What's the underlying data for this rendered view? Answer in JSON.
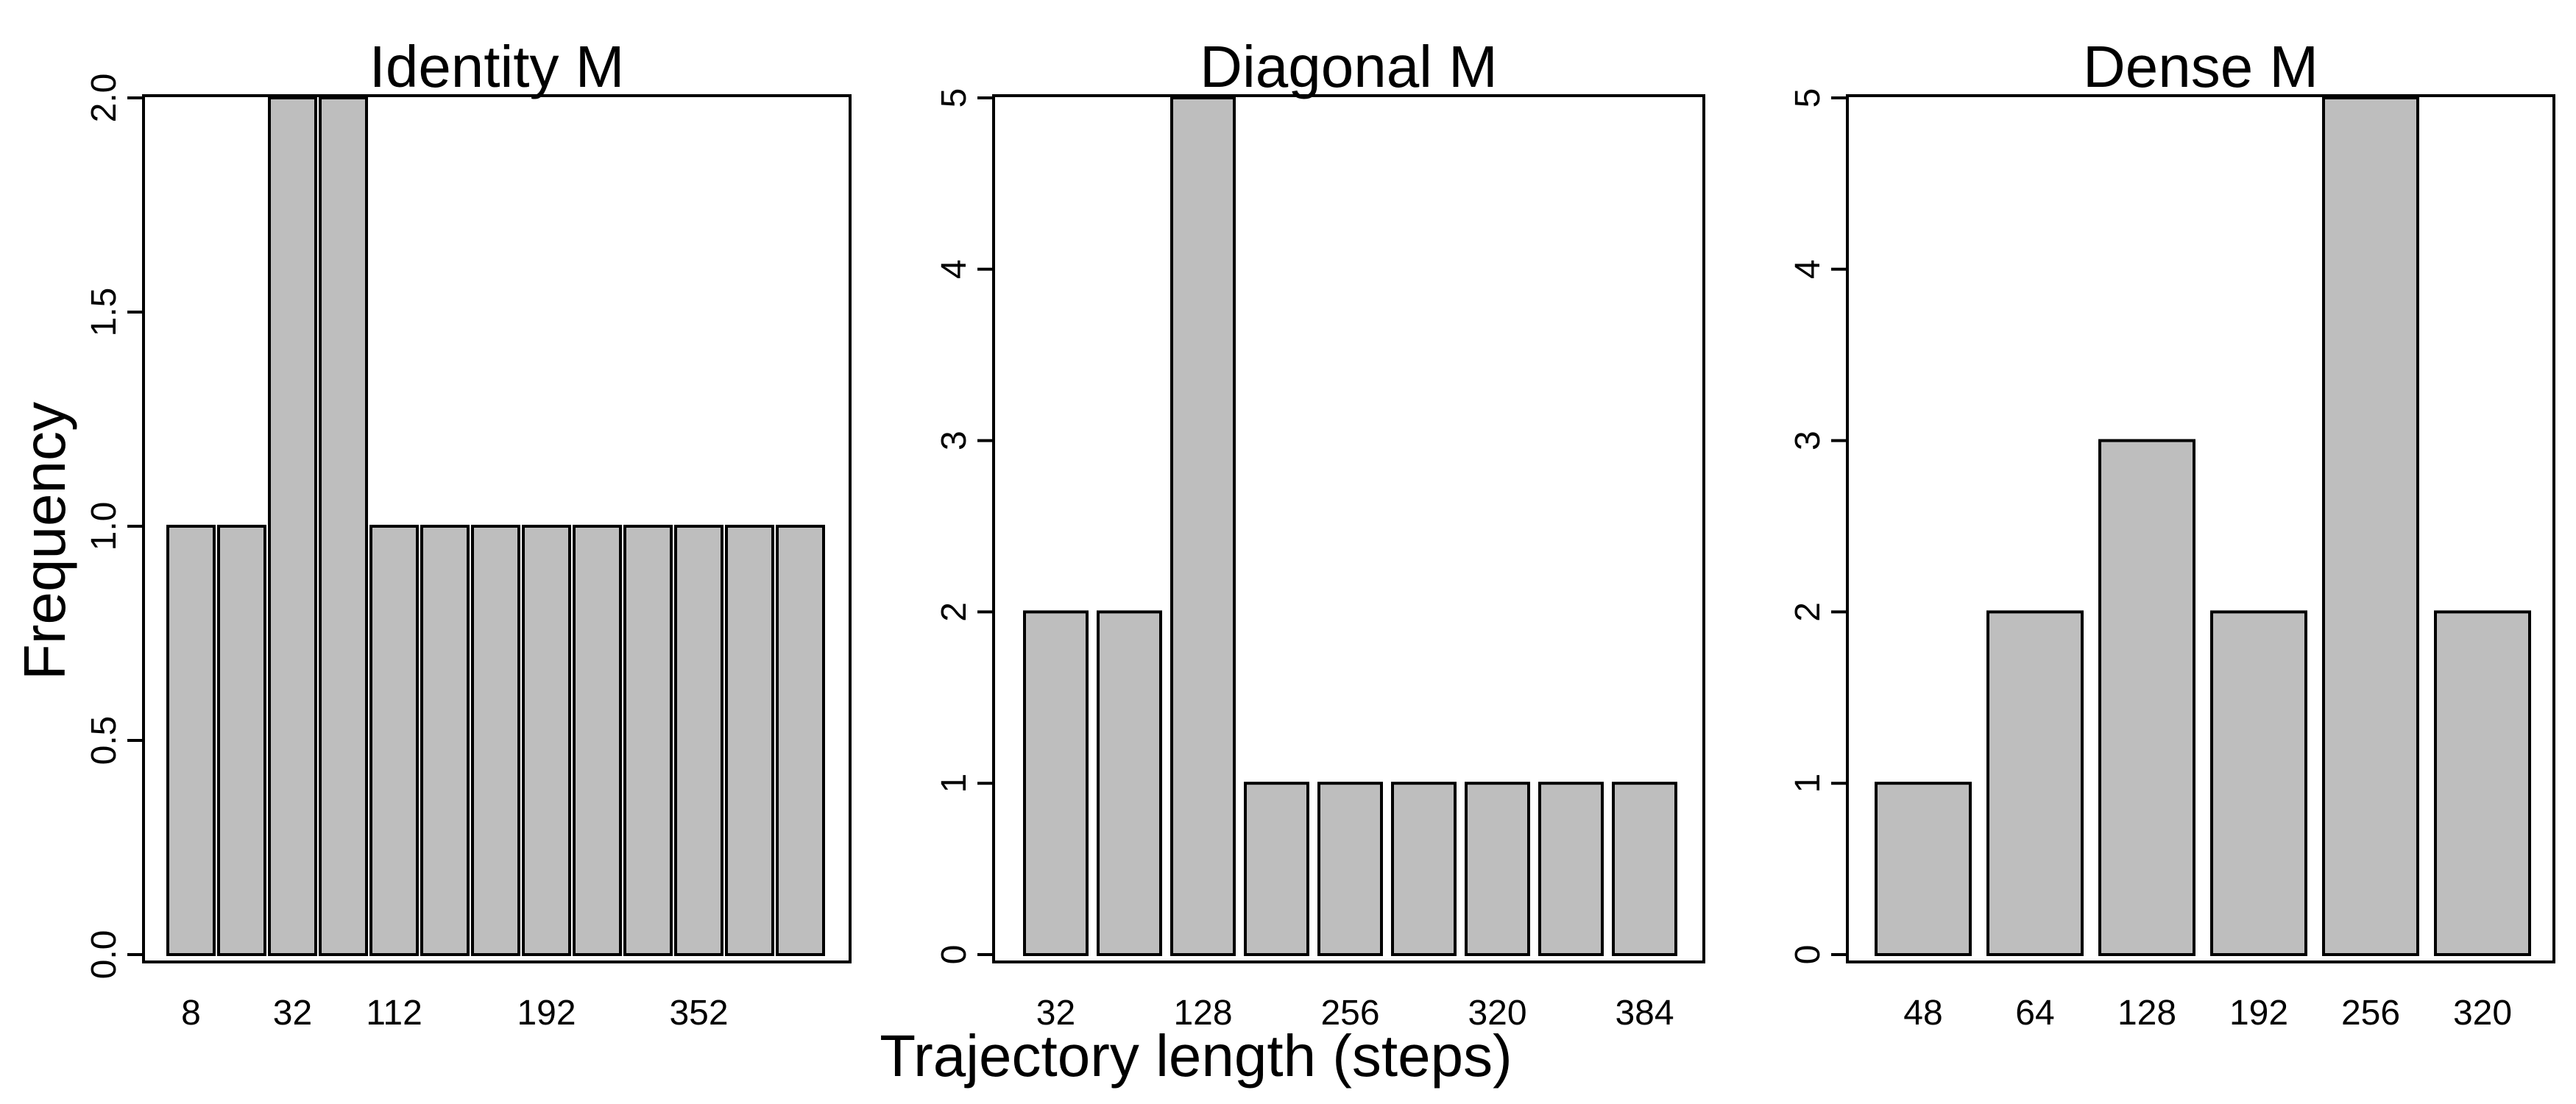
{
  "figure": {
    "ylabel": "Frequency",
    "xlabel": "Trajectory length (steps)"
  },
  "colors": {
    "bar_fill": "#bebebe",
    "bar_stroke": "#000000",
    "background": "#ffffff"
  },
  "chart_data": [
    {
      "type": "bar",
      "title": "Identity M",
      "xlabel": "",
      "ylabel": "",
      "ylim": [
        0,
        2
      ],
      "yticks": [
        0.0,
        0.5,
        1.0,
        1.5,
        2.0
      ],
      "ytick_labels": [
        "0.0",
        "0.5",
        "1.0",
        "1.5",
        "2.0"
      ],
      "values": [
        1,
        1,
        2,
        2,
        1,
        1,
        1,
        1,
        1,
        1,
        1,
        1,
        1
      ],
      "x_tick_labels": [
        {
          "bar": 0,
          "label": "8"
        },
        {
          "bar": 2,
          "label": "32"
        },
        {
          "bar": 4,
          "label": "112"
        },
        {
          "bar": 7,
          "label": "192"
        },
        {
          "bar": 10,
          "label": "352"
        }
      ],
      "grid": false
    },
    {
      "type": "bar",
      "title": "Diagonal M",
      "xlabel": "",
      "ylabel": "",
      "ylim": [
        0,
        5
      ],
      "yticks": [
        0,
        1,
        2,
        3,
        4,
        5
      ],
      "ytick_labels": [
        "0",
        "1",
        "2",
        "3",
        "4",
        "5"
      ],
      "values": [
        2,
        2,
        5,
        1,
        1,
        1,
        1,
        1,
        1
      ],
      "x_tick_labels": [
        {
          "bar": 0,
          "label": "32"
        },
        {
          "bar": 2,
          "label": "128"
        },
        {
          "bar": 4,
          "label": "256"
        },
        {
          "bar": 6,
          "label": "320"
        },
        {
          "bar": 8,
          "label": "384"
        }
      ],
      "grid": false
    },
    {
      "type": "bar",
      "title": "Dense M",
      "xlabel": "",
      "ylabel": "",
      "ylim": [
        0,
        5
      ],
      "yticks": [
        0,
        1,
        2,
        3,
        4,
        5
      ],
      "ytick_labels": [
        "0",
        "1",
        "2",
        "3",
        "4",
        "5"
      ],
      "values": [
        1,
        2,
        3,
        2,
        5,
        2
      ],
      "x_tick_labels": [
        {
          "bar": 0,
          "label": "48"
        },
        {
          "bar": 1,
          "label": "64"
        },
        {
          "bar": 2,
          "label": "128"
        },
        {
          "bar": 3,
          "label": "192"
        },
        {
          "bar": 4,
          "label": "256"
        },
        {
          "bar": 5,
          "label": "320"
        }
      ],
      "grid": false
    }
  ]
}
